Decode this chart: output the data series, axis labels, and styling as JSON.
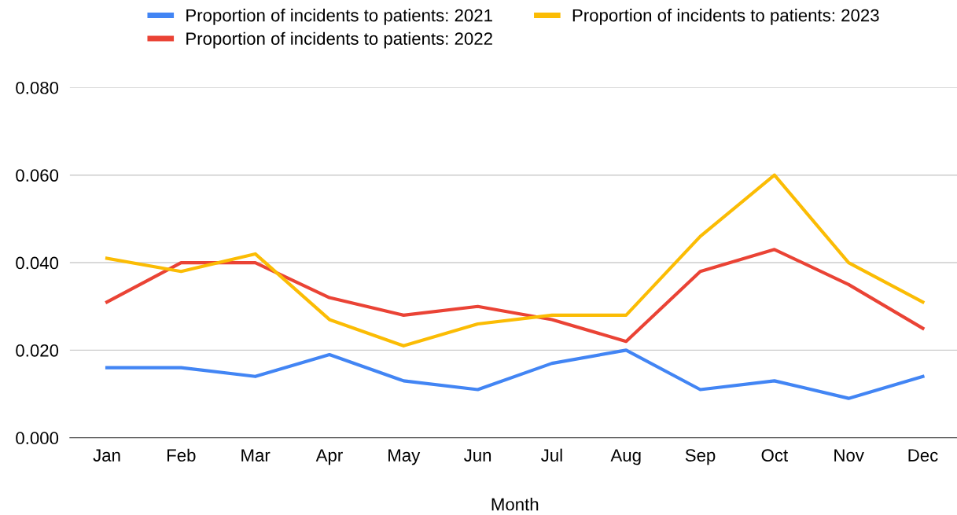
{
  "chart_data": {
    "type": "line",
    "xlabel": "Month",
    "categories": [
      "Jan",
      "Feb",
      "Mar",
      "Apr",
      "May",
      "Jun",
      "Jul",
      "Aug",
      "Sep",
      "Oct",
      "Nov",
      "Dec"
    ],
    "series": [
      {
        "name": "Proportion of incidents to patients: 2021",
        "color": "#4285f4",
        "values": [
          0.016,
          0.016,
          0.014,
          0.019,
          0.013,
          0.011,
          0.017,
          0.02,
          0.011,
          0.013,
          0.009,
          0.014
        ]
      },
      {
        "name": "Proportion of incidents to patients: 2022",
        "color": "#ea4335",
        "values": [
          0.031,
          0.04,
          0.04,
          0.032,
          0.028,
          0.03,
          0.027,
          0.022,
          0.038,
          0.043,
          0.035,
          0.025
        ]
      },
      {
        "name": "Proportion of incidents to patients: 2023",
        "color": "#fbbc04",
        "values": [
          0.041,
          0.038,
          0.042,
          0.027,
          0.021,
          0.026,
          0.028,
          0.028,
          0.046,
          0.06,
          0.04,
          0.031
        ]
      }
    ],
    "ylim": [
      0,
      0.08
    ],
    "yticks": [
      {
        "value": 0,
        "label": "0.000"
      },
      {
        "value": 0.02,
        "label": "0.020"
      },
      {
        "value": 0.04,
        "label": "0.040"
      },
      {
        "value": 0.06,
        "label": "0.060"
      },
      {
        "value": 0.08,
        "label": "0.080"
      }
    ],
    "grid": "y",
    "legend": "top",
    "line_style": "solid",
    "marker": "none"
  }
}
